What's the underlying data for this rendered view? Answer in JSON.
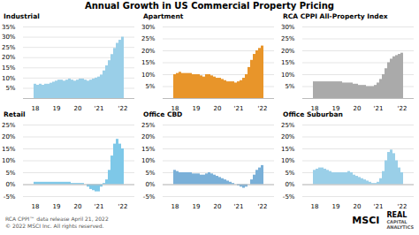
{
  "title": "Annual Growth in US Commercial Property Pricing",
  "annotations": [
    "RCA CPPI™ data release April 21, 2022",
    "© 2022 MSCI Inc. All rights reserved.",
    "MSCI",
    "REAL",
    "CAPITAL\nANALYTICS"
  ],
  "chart_data": [
    {
      "type": "bar",
      "title": "Industrial",
      "categories": [
        "18",
        null,
        null,
        null,
        null,
        null,
        null,
        null,
        "19",
        null,
        null,
        null,
        null,
        null,
        null,
        null,
        "20",
        null,
        null,
        null,
        null,
        null,
        null,
        null,
        "'21",
        null,
        null,
        null,
        null,
        null,
        null,
        null,
        null,
        "'22"
      ],
      "values": [
        0.07,
        0.065,
        0.07,
        0.065,
        0.07,
        0.07,
        0.075,
        0.08,
        0.085,
        0.09,
        0.09,
        0.085,
        0.09,
        0.095,
        0.09,
        0.085,
        0.09,
        0.095,
        0.095,
        0.09,
        0.085,
        0.09,
        0.095,
        0.1,
        0.105,
        0.115,
        0.135,
        0.16,
        0.185,
        0.215,
        0.245,
        0.27,
        0.285,
        0.3
      ],
      "color": "#9acfe8",
      "ylim": [
        0,
        0.35
      ],
      "yticks": [
        {
          "value": 0.05,
          "label": "5%"
        },
        {
          "value": 0.1,
          "label": "10%"
        },
        {
          "value": 0.15,
          "label": "15%"
        },
        {
          "value": 0.2,
          "label": "20%"
        },
        {
          "value": 0.25,
          "label": "25%"
        },
        {
          "value": 0.3,
          "label": "30%"
        },
        {
          "value": 0.35,
          "label": "35%"
        }
      ],
      "grid": true
    },
    {
      "type": "bar",
      "title": "Apartment",
      "categories": [
        "18",
        null,
        null,
        null,
        null,
        null,
        null,
        null,
        "19",
        null,
        null,
        null,
        null,
        null,
        null,
        null,
        "20",
        null,
        null,
        null,
        null,
        null,
        null,
        null,
        "'21",
        null,
        null,
        null,
        null,
        null,
        null,
        null,
        null,
        "'22"
      ],
      "values": [
        0.1,
        0.105,
        0.11,
        0.105,
        0.105,
        0.105,
        0.105,
        0.1,
        0.1,
        0.1,
        0.095,
        0.09,
        0.1,
        0.1,
        0.095,
        0.09,
        0.085,
        0.085,
        0.08,
        0.075,
        0.07,
        0.07,
        0.07,
        0.065,
        0.07,
        0.075,
        0.085,
        0.1,
        0.13,
        0.16,
        0.185,
        0.2,
        0.21,
        0.22
      ],
      "color": "#e8952a",
      "ylim": [
        0,
        0.3
      ],
      "yticks": [
        {
          "value": 0.05,
          "label": "5%"
        },
        {
          "value": 0.1,
          "label": "10%"
        },
        {
          "value": 0.15,
          "label": "15%"
        },
        {
          "value": 0.2,
          "label": "20%"
        },
        {
          "value": 0.25,
          "label": "25%"
        },
        {
          "value": 0.3,
          "label": "30%"
        }
      ],
      "grid": true
    },
    {
      "type": "bar",
      "title": "RCA CPPI All-Property Index",
      "categories": [
        "18",
        null,
        null,
        null,
        null,
        null,
        null,
        null,
        "19",
        null,
        null,
        null,
        null,
        null,
        null,
        null,
        "20",
        null,
        null,
        null,
        null,
        null,
        null,
        null,
        "'21",
        null,
        null,
        null,
        null,
        null,
        null,
        null,
        null,
        "'22"
      ],
      "values": [
        0.07,
        0.07,
        0.07,
        0.07,
        0.07,
        0.07,
        0.07,
        0.07,
        0.07,
        0.07,
        0.07,
        0.065,
        0.065,
        0.065,
        0.065,
        0.06,
        0.06,
        0.055,
        0.055,
        0.055,
        0.05,
        0.05,
        0.05,
        0.055,
        0.065,
        0.08,
        0.1,
        0.125,
        0.15,
        0.165,
        0.175,
        0.18,
        0.185,
        0.19
      ],
      "color": "#aaaaaa",
      "ylim": [
        0,
        0.3
      ],
      "yticks": [
        {
          "value": 0.05,
          "label": "5%"
        },
        {
          "value": 0.1,
          "label": "10%"
        },
        {
          "value": 0.15,
          "label": "15%"
        },
        {
          "value": 0.2,
          "label": "20%"
        },
        {
          "value": 0.25,
          "label": "25%"
        },
        {
          "value": 0.3,
          "label": "30%"
        }
      ],
      "grid": true
    },
    {
      "type": "bar",
      "title": "Retail",
      "categories": [
        "18",
        null,
        null,
        null,
        null,
        null,
        null,
        null,
        "19",
        null,
        null,
        null,
        null,
        null,
        null,
        null,
        "20",
        null,
        null,
        null,
        null,
        null,
        null,
        null,
        "'21",
        null,
        null,
        null,
        null,
        null,
        null,
        null,
        null,
        "'22"
      ],
      "values": [
        0.01,
        0.01,
        0.01,
        0.01,
        0.01,
        0.01,
        0.01,
        0.01,
        0.01,
        0.01,
        0.01,
        0.01,
        0.01,
        0.01,
        0.005,
        0.005,
        0.005,
        0.005,
        0.005,
        0.0,
        -0.01,
        -0.02,
        -0.025,
        -0.03,
        -0.03,
        -0.01,
        0.005,
        0.02,
        0.06,
        0.12,
        0.17,
        0.19,
        0.17,
        0.15
      ],
      "color": "#7ec8e8",
      "ylim": [
        -0.05,
        0.25
      ],
      "yticks": [
        {
          "value": -0.05,
          "label": "-5%"
        },
        {
          "value": 0,
          "label": "0%"
        },
        {
          "value": 0.05,
          "label": "5%"
        },
        {
          "value": 0.1,
          "label": "10%"
        },
        {
          "value": 0.15,
          "label": "15%"
        },
        {
          "value": 0.2,
          "label": "20%"
        },
        {
          "value": 0.25,
          "label": "25%"
        }
      ],
      "grid": true
    },
    {
      "type": "bar",
      "title": "Office CBD",
      "categories": [
        "18",
        null,
        null,
        null,
        null,
        null,
        null,
        null,
        "19",
        null,
        null,
        null,
        null,
        null,
        null,
        null,
        "20",
        null,
        null,
        null,
        null,
        null,
        null,
        null,
        "'21",
        null,
        null,
        null,
        null,
        null,
        null,
        null,
        null,
        "'22"
      ],
      "values": [
        0.06,
        0.055,
        0.05,
        0.05,
        0.05,
        0.05,
        0.05,
        0.045,
        0.045,
        0.045,
        0.04,
        0.04,
        0.045,
        0.05,
        0.045,
        0.04,
        0.035,
        0.03,
        0.025,
        0.02,
        0.015,
        0.01,
        0.005,
        0.0,
        -0.005,
        -0.01,
        -0.015,
        -0.01,
        0.0,
        0.02,
        0.04,
        0.06,
        0.07,
        0.08
      ],
      "color": "#7ab0d8",
      "ylim": [
        -0.05,
        0.25
      ],
      "yticks": [
        {
          "value": -0.05,
          "label": "-5%"
        },
        {
          "value": 0,
          "label": "0%"
        },
        {
          "value": 0.05,
          "label": "5%"
        },
        {
          "value": 0.1,
          "label": "10%"
        },
        {
          "value": 0.15,
          "label": "15%"
        },
        {
          "value": 0.2,
          "label": "20%"
        },
        {
          "value": 0.25,
          "label": "25%"
        }
      ],
      "grid": true
    },
    {
      "type": "bar",
      "title": "Office Suburban",
      "categories": [
        "18",
        null,
        null,
        null,
        null,
        null,
        null,
        null,
        "19",
        null,
        null,
        null,
        null,
        null,
        null,
        null,
        "20",
        null,
        null,
        null,
        null,
        null,
        null,
        null,
        "'21",
        null,
        null,
        null,
        null,
        null,
        null,
        null,
        null,
        "'22"
      ],
      "values": [
        0.06,
        0.065,
        0.07,
        0.07,
        0.065,
        0.06,
        0.055,
        0.05,
        0.05,
        0.05,
        0.05,
        0.05,
        0.05,
        0.055,
        0.05,
        0.04,
        0.035,
        0.03,
        0.025,
        0.02,
        0.015,
        0.01,
        0.005,
        0.005,
        0.01,
        0.025,
        0.055,
        0.1,
        0.135,
        0.145,
        0.13,
        0.1,
        0.07,
        0.05
      ],
      "color": "#9acfe8",
      "ylim": [
        -0.05,
        0.25
      ],
      "yticks": [
        {
          "value": -0.05,
          "label": "-5%"
        },
        {
          "value": 0,
          "label": "0%"
        },
        {
          "value": 0.05,
          "label": "5%"
        },
        {
          "value": 0.1,
          "label": "10%"
        },
        {
          "value": 0.15,
          "label": "15%"
        },
        {
          "value": 0.2,
          "label": "20%"
        },
        {
          "value": 0.25,
          "label": "25%"
        }
      ],
      "grid": true
    }
  ]
}
